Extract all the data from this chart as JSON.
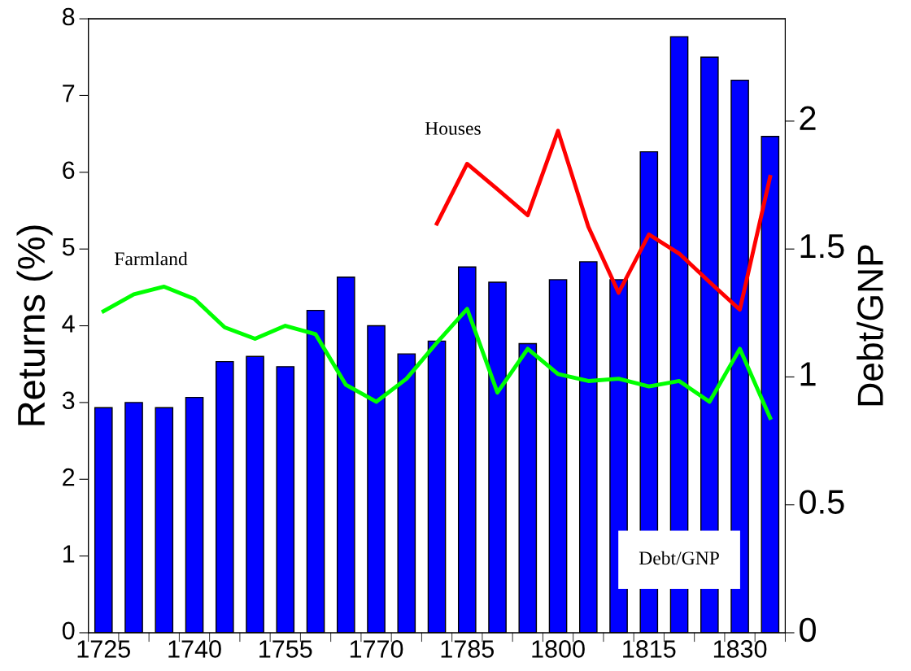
{
  "chart_data": {
    "type": "bar",
    "xlabel": null,
    "ylabel": "Returns (%)",
    "y2label": "Debt/GNP",
    "categories": [
      "1725",
      null,
      null,
      "1740",
      null,
      null,
      "1755",
      null,
      null,
      "1770",
      null,
      null,
      "1785",
      null,
      null,
      "1800",
      null,
      null,
      "1815",
      null,
      null,
      "1830",
      null
    ],
    "ylim": [
      0,
      8
    ],
    "yticks": [
      0,
      1,
      2,
      3,
      4,
      5,
      6,
      7,
      8
    ],
    "y2lim": [
      0,
      2.4
    ],
    "y2ticks": [
      0,
      0.5,
      1,
      1.5,
      2
    ],
    "grid": false,
    "series": [
      {
        "name": "Debt/GNP",
        "axis": "y2",
        "color": "#0000ff",
        "values": [
          0.88,
          0.9,
          0.88,
          0.92,
          1.06,
          1.08,
          1.04,
          1.26,
          1.39,
          1.2,
          1.09,
          1.14,
          1.43,
          1.37,
          1.13,
          1.38,
          1.45,
          1.38,
          1.88,
          2.33,
          2.25,
          2.16,
          1.94
        ]
      },
      {
        "name": "Farmland",
        "type": "line",
        "color": "#00ff00",
        "values": [
          4.19,
          4.41,
          4.51,
          4.35,
          3.98,
          3.83,
          4.0,
          3.89,
          3.23,
          3.01,
          3.31,
          3.78,
          4.22,
          3.13,
          3.7,
          3.37,
          3.28,
          3.31,
          3.21,
          3.28,
          3.01,
          3.7,
          2.8
        ]
      },
      {
        "name": "Houses",
        "type": "line",
        "color": "#ff0000",
        "values": [
          null,
          null,
          null,
          null,
          null,
          null,
          null,
          null,
          null,
          null,
          null,
          5.33,
          6.11,
          5.78,
          5.44,
          6.54,
          5.29,
          4.43,
          5.19,
          4.94,
          4.57,
          4.21,
          5.94
        ]
      }
    ]
  }
}
